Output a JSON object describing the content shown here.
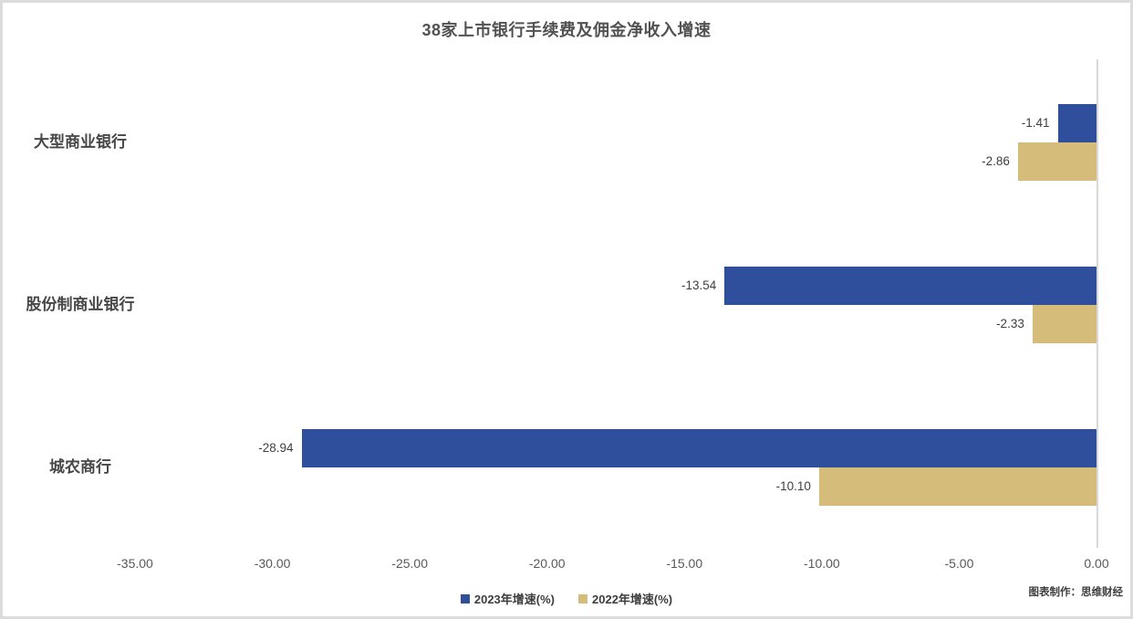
{
  "card": {
    "credit": "图表制作：思维财经"
  },
  "chart_data": {
    "type": "bar",
    "orientation": "horizontal",
    "title": "38家上市银行手续费及佣金净收入增速",
    "categories": [
      "大型商业银行",
      "股份制商业银行",
      "城农商行"
    ],
    "series": [
      {
        "name": "2023年增速(%)",
        "color": "#2F4F9D",
        "values": [
          -1.41,
          -13.54,
          -28.94
        ]
      },
      {
        "name": "2022年增速(%)",
        "color": "#D5BC7A",
        "values": [
          -2.86,
          -2.33,
          -10.1
        ]
      }
    ],
    "xlabel": "",
    "ylabel": "",
    "xlim": [
      -35,
      0
    ],
    "x_ticks": [
      "-35.00",
      "-30.00",
      "-25.00",
      "-20.00",
      "-15.00",
      "-10.00",
      "-5.00",
      "0.00"
    ],
    "x_tick_values": [
      -35,
      -30,
      -25,
      -20,
      -15,
      -10,
      -5,
      0
    ],
    "grid": false,
    "value_labels_shown": true,
    "legend_position": "bottom",
    "colors": {
      "axis_line": "#d9d9d9",
      "tick_text": "#595959",
      "title_text": "#525252"
    }
  }
}
